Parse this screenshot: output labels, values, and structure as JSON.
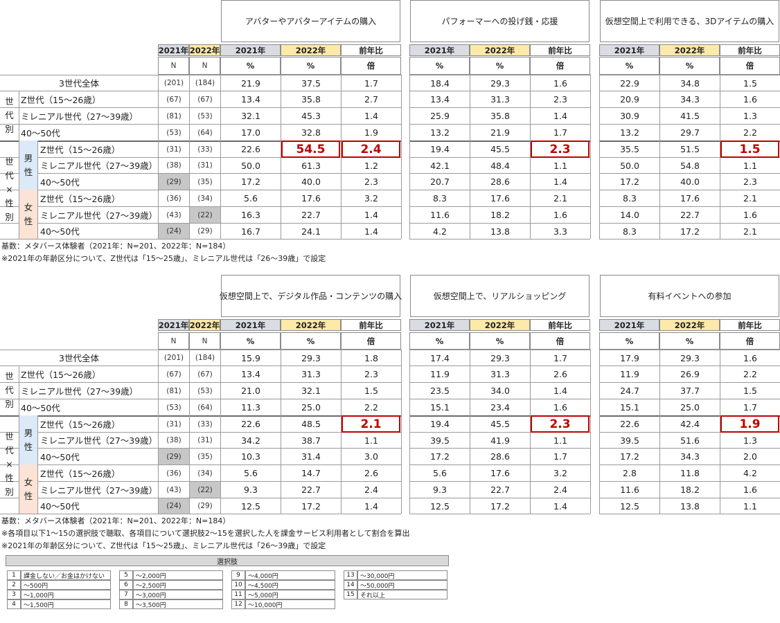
{
  "top": {
    "groups": [
      {
        "title": "アバターやアバターアイテムの購入",
        "rows": [
          [
            "21.9",
            "37.5",
            "1.7"
          ],
          [
            "13.4",
            "35.8",
            "2.7"
          ],
          [
            "32.1",
            "45.3",
            "1.4"
          ],
          [
            "17.0",
            "32.8",
            "1.9"
          ],
          [
            "22.6",
            "54.5",
            "2.4"
          ],
          [
            "50.0",
            "61.3",
            "1.2"
          ],
          [
            "17.2",
            "40.0",
            "2.3"
          ],
          [
            "5.6",
            "17.6",
            "3.2"
          ],
          [
            "16.3",
            "22.7",
            "1.4"
          ],
          [
            "16.7",
            "24.1",
            "1.4"
          ]
        ],
        "highlights": [
          [
            4,
            1
          ],
          [
            4,
            2
          ]
        ]
      },
      {
        "title": "パフォーマーへの投げ銭・応援",
        "rows": [
          [
            "18.4",
            "29.3",
            "1.6"
          ],
          [
            "13.4",
            "31.3",
            "2.3"
          ],
          [
            "25.9",
            "35.8",
            "1.4"
          ],
          [
            "13.2",
            "21.9",
            "1.7"
          ],
          [
            "19.4",
            "45.5",
            "2.3"
          ],
          [
            "42.1",
            "48.4",
            "1.1"
          ],
          [
            "20.7",
            "28.6",
            "1.4"
          ],
          [
            "8.3",
            "17.6",
            "2.1"
          ],
          [
            "11.6",
            "18.2",
            "1.6"
          ],
          [
            "4.2",
            "13.8",
            "3.3"
          ]
        ],
        "highlights": [
          [
            4,
            2
          ]
        ]
      },
      {
        "title": "仮想空間上で利用できる、3Dアイテムの購入",
        "rows": [
          [
            "22.9",
            "34.8",
            "1.5"
          ],
          [
            "20.9",
            "34.3",
            "1.6"
          ],
          [
            "30.9",
            "41.5",
            "1.3"
          ],
          [
            "13.2",
            "29.7",
            "2.2"
          ],
          [
            "35.5",
            "51.5",
            "1.5"
          ],
          [
            "50.0",
            "54.8",
            "1.1"
          ],
          [
            "17.2",
            "40.0",
            "2.3"
          ],
          [
            "8.3",
            "17.6",
            "2.1"
          ],
          [
            "14.0",
            "22.7",
            "1.6"
          ],
          [
            "8.3",
            "17.2",
            "2.1"
          ]
        ],
        "highlights": [
          [
            4,
            2
          ]
        ]
      }
    ],
    "notes": [
      "基数：メタバース体験者（2021年：N=201、2022年：N=184）",
      "※2021年の年齢区分について、Z世代は「15～25歳」、ミレニアル世代は「26～39歳」で設定"
    ]
  },
  "bottom": {
    "groups": [
      {
        "title": "仮想空間上で、デジタル作品・コンテンツの購入",
        "rows": [
          [
            "15.9",
            "29.3",
            "1.8"
          ],
          [
            "13.4",
            "31.3",
            "2.3"
          ],
          [
            "21.0",
            "32.1",
            "1.5"
          ],
          [
            "11.3",
            "25.0",
            "2.2"
          ],
          [
            "22.6",
            "48.5",
            "2.1"
          ],
          [
            "34.2",
            "38.7",
            "1.1"
          ],
          [
            "10.3",
            "31.4",
            "3.0"
          ],
          [
            "5.6",
            "14.7",
            "2.6"
          ],
          [
            "9.3",
            "22.7",
            "2.4"
          ],
          [
            "12.5",
            "17.2",
            "1.4"
          ]
        ],
        "highlights": [
          [
            4,
            2
          ]
        ]
      },
      {
        "title": "仮想空間上で、リアルショッピング",
        "rows": [
          [
            "17.4",
            "29.3",
            "1.7"
          ],
          [
            "11.9",
            "31.3",
            "2.6"
          ],
          [
            "23.5",
            "34.0",
            "1.4"
          ],
          [
            "15.1",
            "23.4",
            "1.6"
          ],
          [
            "19.4",
            "45.5",
            "2.3"
          ],
          [
            "39.5",
            "41.9",
            "1.1"
          ],
          [
            "17.2",
            "28.6",
            "1.7"
          ],
          [
            "5.6",
            "17.6",
            "3.2"
          ],
          [
            "9.3",
            "22.7",
            "2.4"
          ],
          [
            "12.5",
            "17.2",
            "1.4"
          ]
        ],
        "highlights": [
          [
            4,
            2
          ]
        ]
      },
      {
        "title": "有料イベントへの参加",
        "rows": [
          [
            "17.9",
            "29.3",
            "1.6"
          ],
          [
            "11.9",
            "26.9",
            "2.2"
          ],
          [
            "24.7",
            "37.7",
            "1.5"
          ],
          [
            "15.1",
            "25.0",
            "1.7"
          ],
          [
            "22.6",
            "42.4",
            "1.9"
          ],
          [
            "39.5",
            "51.6",
            "1.3"
          ],
          [
            "17.2",
            "34.3",
            "2.0"
          ],
          [
            "2.8",
            "11.8",
            "4.2"
          ],
          [
            "11.6",
            "18.2",
            "1.6"
          ],
          [
            "12.5",
            "13.8",
            "1.1"
          ]
        ],
        "highlights": [
          [
            4,
            2
          ]
        ]
      }
    ],
    "notes": [
      "基数：メタバース体験者（2021年：N=201、2022年：N=184）",
      "※各項目以下1～15の選択肢で聴取、各項目について選択肢2～15を選択した人を課金サービス利用者として割合を算出",
      "※2021年の年齢区分について、Z世代は「15～25歳」、ミレニアル世代は「26～39歳」で設定"
    ]
  },
  "sub_headers": {
    "y2021": "2021年",
    "y2022": "2022年",
    "ratio": "前年比",
    "n": "N",
    "pct": "%",
    "times": "倍"
  },
  "row_labels": {
    "total": "3世代全体",
    "gen": [
      "Z世代（15～26歳）",
      "ミレニアル世代（27～39歳）",
      "40～50代"
    ],
    "male": [
      "Z世代（15～26歳）",
      "ミレニアル世代（27～39歳）",
      "40～50代"
    ],
    "female": [
      "Z世代（15～26歳）",
      "ミレニアル世代（27～39歳）",
      "40～50代"
    ],
    "grp_gen": "世代別",
    "grp_sex": "世代×性別",
    "male_label": "男性",
    "female_label": "女性"
  },
  "n2021": [
    "(201)",
    "(67)",
    "(81)",
    "(53)",
    "(31)",
    "(38)",
    "(29)",
    "(36)",
    "(43)",
    "(24)"
  ],
  "n2022": [
    "(184)",
    "(67)",
    "(53)",
    "(64)",
    "(33)",
    "(31)",
    "(35)",
    "(34)",
    "(22)",
    "(29)"
  ],
  "shaded_n2021": [
    6,
    9
  ],
  "shaded_n2022": [
    8
  ],
  "legend": {
    "title": "選択肢",
    "columns": [
      [
        [
          "1",
          "課金しない／お金はかけない"
        ],
        [
          "2",
          "～500円"
        ],
        [
          "3",
          "～1,000円"
        ],
        [
          "4",
          "～1,500円"
        ]
      ],
      [
        [
          "5",
          "～2,000円"
        ],
        [
          "6",
          "～2,500円"
        ],
        [
          "7",
          "～3,000円"
        ],
        [
          "8",
          "～3,500円"
        ]
      ],
      [
        [
          "9",
          "～4,000円"
        ],
        [
          "10",
          "～4,500円"
        ],
        [
          "11",
          "～5,000円"
        ],
        [
          "12",
          "～10,000円"
        ]
      ],
      [
        [
          "13",
          "～30,000円"
        ],
        [
          "14",
          "～50,000円"
        ],
        [
          "15",
          "それ以上"
        ]
      ]
    ]
  }
}
